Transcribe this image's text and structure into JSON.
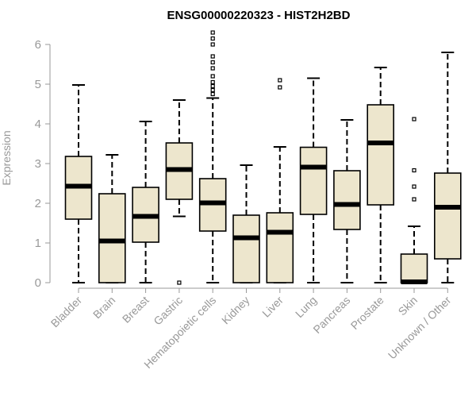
{
  "chart_data": {
    "type": "box",
    "title": "ENSG00000220323 - HIST2H2BD",
    "ylabel": "Expression",
    "xlabel": "",
    "ylim": [
      0,
      6.3
    ],
    "yticks": [
      "0",
      "1",
      "2",
      "3",
      "4",
      "5",
      "6"
    ],
    "box_fill": "#ede6cd",
    "categories": [
      "Bladder",
      "Brain",
      "Breast",
      "Gastric",
      "Hematopoietic cells",
      "Kidney",
      "Liver",
      "Lung",
      "Pancreas",
      "Prostate",
      "Skin",
      "Unknown / Other"
    ],
    "boxes": [
      {
        "whisker_low": 0.0,
        "q1": 1.6,
        "median": 2.43,
        "q3": 3.18,
        "whisker_high": 4.98,
        "outliers": []
      },
      {
        "whisker_low": 0.0,
        "q1": 0.0,
        "median": 1.05,
        "q3": 2.24,
        "whisker_high": 3.22,
        "outliers": []
      },
      {
        "whisker_low": 0.0,
        "q1": 1.02,
        "median": 1.67,
        "q3": 2.4,
        "whisker_high": 4.06,
        "outliers": []
      },
      {
        "whisker_low": 1.67,
        "q1": 2.1,
        "median": 2.85,
        "q3": 3.52,
        "whisker_high": 4.6,
        "outliers": [
          0.0
        ]
      },
      {
        "whisker_low": 0.0,
        "q1": 1.3,
        "median": 2.01,
        "q3": 2.62,
        "whisker_high": 4.65,
        "outliers": [
          4.75,
          4.85,
          4.95,
          5.05,
          5.2,
          5.4,
          5.55,
          5.7,
          6.0,
          6.15,
          6.3
        ]
      },
      {
        "whisker_low": 0.0,
        "q1": 0.0,
        "median": 1.13,
        "q3": 1.7,
        "whisker_high": 2.96,
        "outliers": []
      },
      {
        "whisker_low": 0.0,
        "q1": 0.0,
        "median": 1.27,
        "q3": 1.76,
        "whisker_high": 3.42,
        "outliers": [
          4.92,
          5.1
        ]
      },
      {
        "whisker_low": 0.0,
        "q1": 1.72,
        "median": 2.91,
        "q3": 3.41,
        "whisker_high": 5.15,
        "outliers": []
      },
      {
        "whisker_low": 0.0,
        "q1": 1.34,
        "median": 1.97,
        "q3": 2.82,
        "whisker_high": 4.1,
        "outliers": []
      },
      {
        "whisker_low": 0.0,
        "q1": 1.96,
        "median": 3.52,
        "q3": 4.48,
        "whisker_high": 5.42,
        "outliers": []
      },
      {
        "whisker_low": 0.0,
        "q1": 0.0,
        "median": 0.02,
        "q3": 0.72,
        "whisker_high": 1.42,
        "outliers": [
          2.1,
          2.42,
          2.83,
          4.12
        ]
      },
      {
        "whisker_low": 0.0,
        "q1": 0.6,
        "median": 1.9,
        "q3": 2.76,
        "whisker_high": 5.8,
        "outliers": []
      }
    ]
  }
}
